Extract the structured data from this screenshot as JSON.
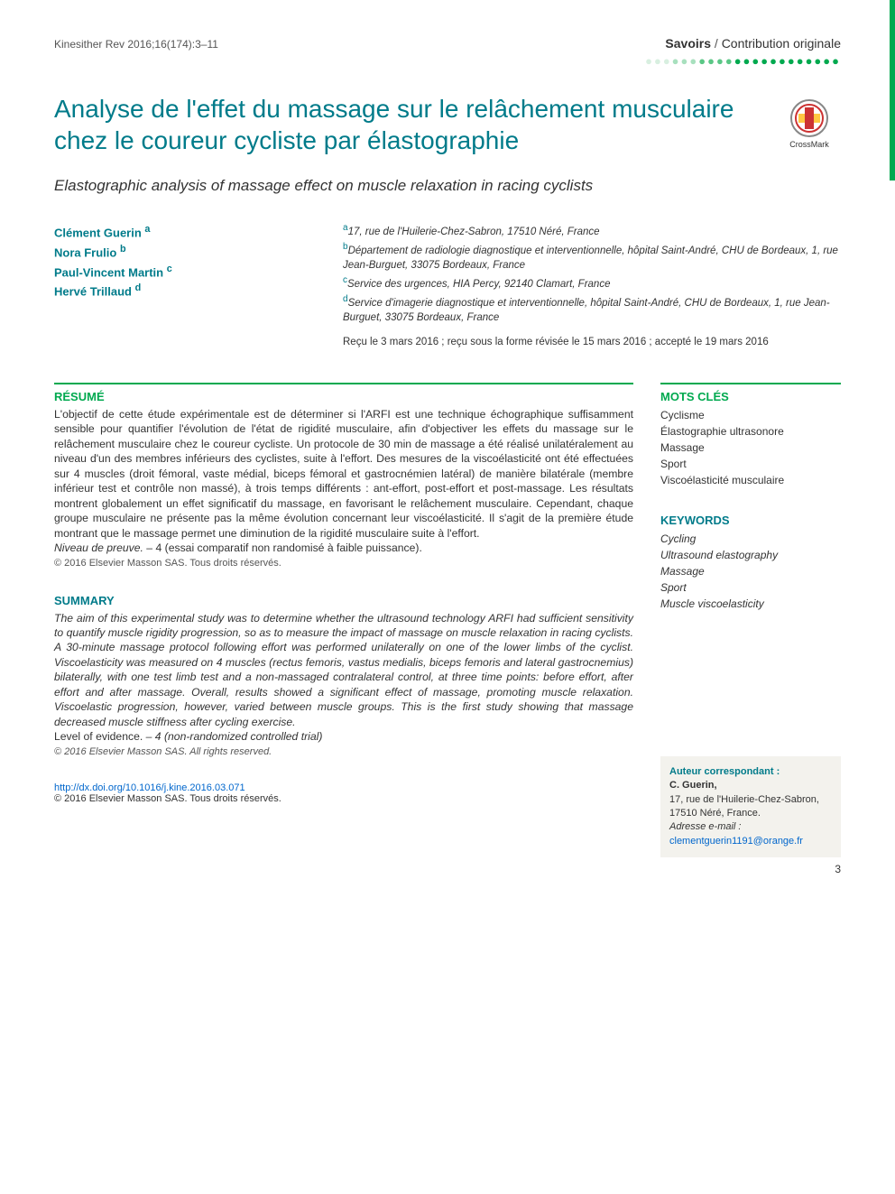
{
  "header": {
    "journal_ref": "Kinesither Rev 2016;16(174):3–11",
    "section_bold": "Savoirs",
    "section_sep": " / ",
    "section_rest": "Contribution originale"
  },
  "title": {
    "fr": "Analyse de l'effet du massage sur le relâchement musculaire chez le coureur cycliste par élastographie",
    "en": "Elastographic analysis of massage effect on muscle relaxation in racing cyclists"
  },
  "crossmark_label": "CrossMark",
  "authors": [
    {
      "name": "Clément Guerin",
      "sup": "a"
    },
    {
      "name": "Nora Frulio",
      "sup": "b"
    },
    {
      "name": "Paul-Vincent Martin",
      "sup": "c"
    },
    {
      "name": "Hervé Trillaud",
      "sup": "d"
    }
  ],
  "affiliations": [
    {
      "sup": "a",
      "text": "17, rue de l'Huilerie-Chez-Sabron, 17510 Néré, France"
    },
    {
      "sup": "b",
      "text": "Département de radiologie diagnostique et interventionnelle, hôpital Saint-André, CHU de Bordeaux, 1, rue Jean-Burguet, 33075 Bordeaux, France"
    },
    {
      "sup": "c",
      "text": "Service des urgences, HIA Percy, 92140 Clamart, France"
    },
    {
      "sup": "d",
      "text": "Service d'imagerie diagnostique et interventionnelle, hôpital Saint-André, CHU de Bordeaux, 1, rue Jean-Burguet, 33075 Bordeaux, France"
    }
  ],
  "dates": "Reçu le 3 mars 2016 ; reçu sous la forme révisée le 15 mars 2016 ; accepté le 19 mars 2016",
  "resume": {
    "heading": "RÉSUMÉ",
    "body": "L'objectif de cette étude expérimentale est de déterminer si l'ARFI est une technique échographique suffisamment sensible pour quantifier l'évolution de l'état de rigidité musculaire, afin d'objectiver les effets du massage sur le relâchement musculaire chez le coureur cycliste. Un protocole de 30 min de massage a été réalisé unilatéralement au niveau d'un des membres inférieurs des cyclistes, suite à l'effort. Des mesures de la viscoélasticité ont été effectuées sur 4 muscles (droit fémoral, vaste médial, biceps fémoral et gastrocnémien latéral) de manière bilatérale (membre inférieur test et contrôle non massé), à trois temps différents : ant-effort, post-effort et post-massage. Les résultats montrent globalement un effet significatif du massage, en favorisant le relâchement musculaire. Cependant, chaque groupe musculaire ne présente pas la même évolution concernant leur viscoélasticité. Il s'agit de la première étude montrant que le massage permet une diminution de la rigidité musculaire suite à l'effort.",
    "level_label": "Niveau de preuve.",
    "level_value": " – 4 (essai comparatif non randomisé à faible puissance).",
    "copyright": "© 2016 Elsevier Masson SAS. Tous droits réservés."
  },
  "summary": {
    "heading": "SUMMARY",
    "body": "The aim of this experimental study was to determine whether the ultrasound technology ARFI had sufficient sensitivity to quantify muscle rigidity progression, so as to measure the impact of massage on muscle relaxation in racing cyclists. A 30-minute massage protocol following effort was performed unilaterally on one of the lower limbs of the cyclist. Viscoelasticity was measured on 4 muscles (rectus femoris, vastus medialis, biceps femoris and lateral gastrocnemius) bilaterally, with one test limb test and a non-massaged contralateral control, at three time points: before effort, after effort and after massage. Overall, results showed a significant effect of massage, promoting muscle relaxation. Viscoelastic progression, however, varied between muscle groups. This is the first study showing that massage decreased muscle stiffness after cycling exercise.",
    "level_label": "Level of evidence.",
    "level_value": " – 4 (non-randomized controlled trial)",
    "copyright": "© 2016 Elsevier Masson SAS. All rights reserved."
  },
  "mots_cles": {
    "heading": "MOTS CLÉS",
    "items": [
      "Cyclisme",
      "Élastographie ultrasonore",
      "Massage",
      "Sport",
      "Viscoélasticité musculaire"
    ]
  },
  "keywords": {
    "heading": "KEYWORDS",
    "items": [
      "Cycling",
      "Ultrasound elastography",
      "Massage",
      "Sport",
      "Muscle viscoelasticity"
    ]
  },
  "correspondence": {
    "label": "Auteur correspondant :",
    "name": "C. Guerin,",
    "addr": "17, rue de l'Huilerie-Chez-Sabron, 17510 Néré, France.",
    "email_label": "Adresse e-mail :",
    "email": "clementguerin1191@orange.fr"
  },
  "doi": {
    "url": "http://dx.doi.org/10.1016/j.kine.2016.03.071",
    "copyright": "© 2016 Elsevier Masson SAS. Tous droits réservés."
  },
  "page_number": "3",
  "colors": {
    "green": "#00a94f",
    "teal": "#007b8a",
    "link": "#0066cc",
    "sidebar_bg": "#f3f2ed"
  }
}
